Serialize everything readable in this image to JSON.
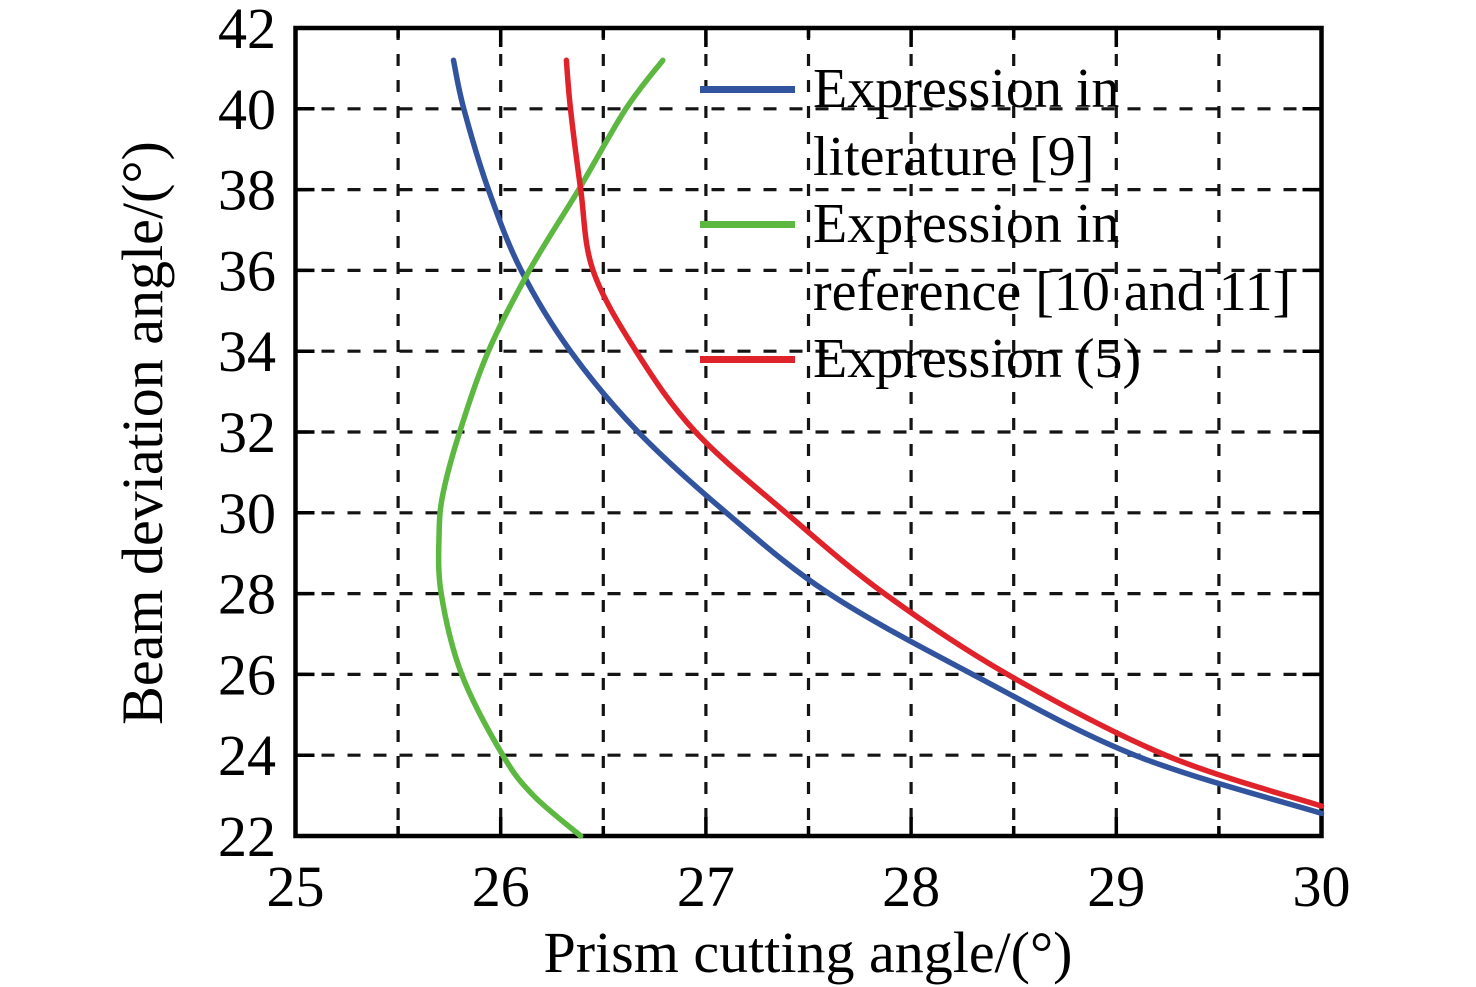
{
  "figure": {
    "background": "#ffffff",
    "frame_color": "#000000",
    "grid_color": "#141414"
  },
  "chart_data": {
    "type": "line",
    "title": "",
    "xlabel": "Prism cutting angle/(°)",
    "ylabel": "Beam deviation angle/(°)",
    "xlim": [
      25,
      30
    ],
    "ylim": [
      22,
      42
    ],
    "x_major_ticks": [
      25,
      26,
      27,
      28,
      29,
      30
    ],
    "x_minor_tick_step": 0.5,
    "y_major_ticks": [
      22,
      24,
      26,
      28,
      30,
      32,
      34,
      36,
      38,
      40,
      42
    ],
    "x_gridlines": [
      25.5,
      26,
      26.5,
      27,
      27.5,
      28,
      28.5,
      29,
      29.5
    ],
    "y_gridlines": [
      24,
      26,
      28,
      30,
      32,
      34,
      36,
      38,
      40
    ],
    "grid_style": "dashed",
    "legend_position": "top-right-inside-no-box",
    "series": [
      {
        "name": "Expression in literature [9]",
        "color": "#32549e",
        "points": [
          [
            25.77,
            41.2
          ],
          [
            25.82,
            40
          ],
          [
            25.94,
            38
          ],
          [
            26.1,
            36
          ],
          [
            26.34,
            34
          ],
          [
            26.67,
            32
          ],
          [
            27.1,
            30
          ],
          [
            27.6,
            28
          ],
          [
            28.3,
            26
          ],
          [
            29.09,
            24
          ],
          [
            30.0,
            22.56
          ]
        ]
      },
      {
        "name": "Expression in reference [10 and 11]",
        "color": "#5cb840",
        "points": [
          [
            26.79,
            41.2
          ],
          [
            26.61,
            40
          ],
          [
            26.38,
            38
          ],
          [
            26.14,
            36
          ],
          [
            25.94,
            34
          ],
          [
            25.8,
            32
          ],
          [
            25.72,
            30.5
          ],
          [
            25.7,
            29.5
          ],
          [
            25.71,
            28
          ],
          [
            25.81,
            26
          ],
          [
            26.01,
            24
          ],
          [
            26.16,
            23
          ],
          [
            26.39,
            22
          ]
        ]
      },
      {
        "name": "Expression (5)",
        "color": "#e0232a",
        "points": [
          [
            26.32,
            41.2
          ],
          [
            26.34,
            40
          ],
          [
            26.39,
            38
          ],
          [
            26.45,
            36
          ],
          [
            26.66,
            34
          ],
          [
            26.95,
            32
          ],
          [
            27.39,
            30
          ],
          [
            27.87,
            28
          ],
          [
            28.47,
            26
          ],
          [
            29.24,
            24
          ],
          [
            30.0,
            22.74
          ]
        ]
      }
    ]
  },
  "legend": {
    "entries": [
      {
        "series_index": 0,
        "lines": [
          "Expression in",
          "literature [9]"
        ]
      },
      {
        "series_index": 1,
        "lines": [
          "Expression in",
          "reference [10 and 11]"
        ]
      },
      {
        "series_index": 2,
        "lines": [
          "Expression (5)"
        ]
      }
    ]
  }
}
